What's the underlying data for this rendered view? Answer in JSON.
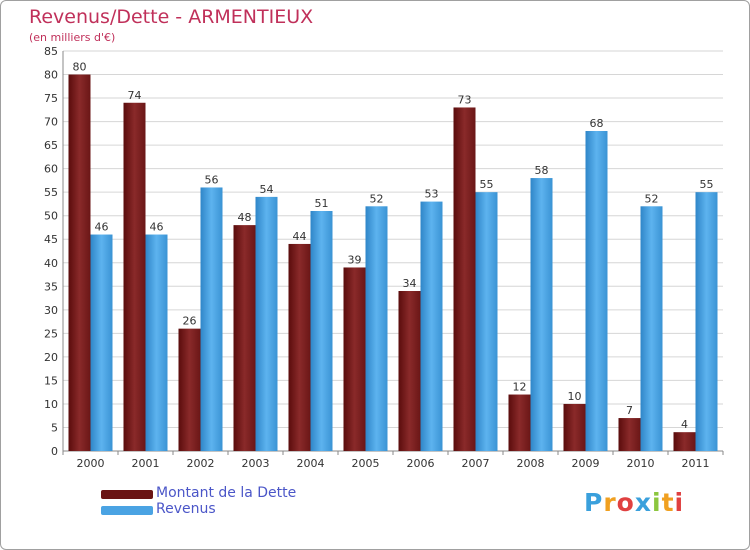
{
  "title": "Revenus/Dette - ARMENTIEUX",
  "subtitle": "(en milliers d'€)",
  "logo_text": "Proxiti",
  "colors": {
    "dette": "#7a1f1f",
    "revenus": "#4aa3e3",
    "title": "#c0305a",
    "legend_text": "#4b56c8"
  },
  "chart_data": {
    "type": "bar",
    "title": "Revenus/Dette - ARMENTIEUX",
    "subtitle": "(en milliers d'€)",
    "categories": [
      "2000",
      "2001",
      "2002",
      "2003",
      "2004",
      "2005",
      "2006",
      "2007",
      "2008",
      "2009",
      "2010",
      "2011"
    ],
    "series": [
      {
        "name": "Montant de la Dette",
        "values": [
          80,
          74,
          26,
          48,
          44,
          39,
          34,
          73,
          12,
          10,
          7,
          4
        ]
      },
      {
        "name": "Revenus",
        "values": [
          46,
          46,
          56,
          54,
          51,
          52,
          53,
          55,
          58,
          68,
          52,
          55
        ]
      }
    ],
    "ylim": [
      0,
      85
    ],
    "yticks": [
      0,
      5,
      10,
      15,
      20,
      25,
      30,
      35,
      40,
      45,
      50,
      55,
      60,
      65,
      70,
      75,
      80,
      85
    ],
    "grid": true,
    "legend_position": "bottom-left"
  }
}
